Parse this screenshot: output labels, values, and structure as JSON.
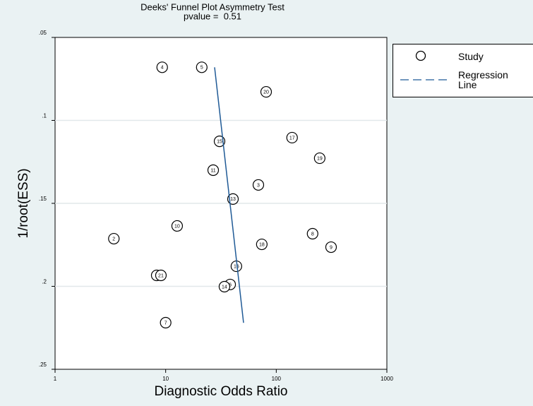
{
  "chart_data": {
    "type": "scatter",
    "title": "Deeks' Funnel Plot Asymmetry Test",
    "subtitle": "pvalue =  0.51",
    "x_label": "Diagnostic Odds Ratio",
    "y_label": "1/root(ESS)",
    "xscale": "log",
    "y_inverted": true,
    "grid": true,
    "legend": "right",
    "xlim": [
      1,
      1000
    ],
    "xticks": [
      1,
      10,
      100,
      1000
    ],
    "ylim": [
      0.05,
      0.25
    ],
    "yticks": [
      {
        "value": 0.05,
        "label": ".05"
      },
      {
        "value": 0.1,
        "label": ".1"
      },
      {
        "value": 0.15,
        "label": ".15"
      },
      {
        "value": 0.2,
        "label": ".2"
      },
      {
        "value": 0.25,
        "label": ".25"
      }
    ],
    "series": [
      {
        "name": "Study",
        "color": "#000000",
        "labels": [
          "4",
          "5",
          "20",
          "17",
          "15",
          "19",
          "11",
          "3",
          "13",
          "10",
          "2",
          "8",
          "18",
          "9",
          "16",
          "1",
          "21",
          "6",
          "14",
          "7"
        ],
        "x": [
          9.3,
          21.2,
          81,
          139,
          30.7,
          247,
          26.9,
          68.9,
          40.6,
          12.7,
          3.4,
          213,
          74,
          313,
          43.6,
          8.3,
          9.06,
          38.3,
          34,
          10
        ],
        "values": [
          0.068,
          0.068,
          0.0828,
          0.1104,
          0.1126,
          0.1228,
          0.13,
          0.1389,
          0.1474,
          0.1636,
          0.1713,
          0.1683,
          0.1747,
          0.1764,
          0.1879,
          0.1934,
          0.1934,
          0.1989,
          0.2002,
          0.2219
        ]
      },
      {
        "name": "Regression Line",
        "color": "#1f5a96",
        "line": "dashed",
        "x": [
          27.7,
          50.6
        ],
        "values": [
          0.068,
          0.222
        ]
      }
    ]
  }
}
